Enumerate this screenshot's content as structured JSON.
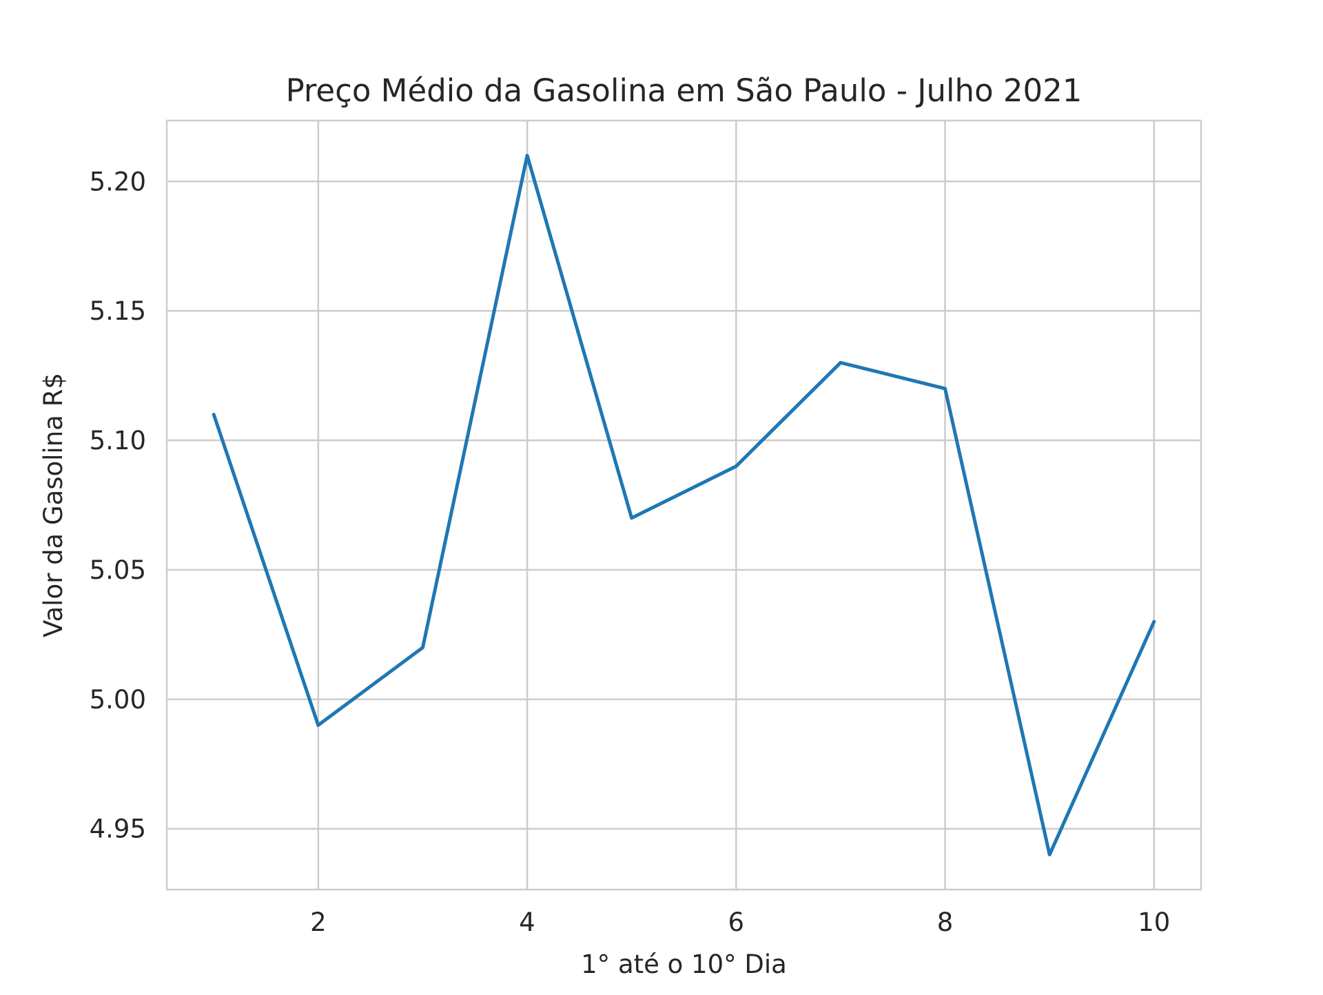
{
  "chart_data": {
    "type": "line",
    "title": "Preço Médio da Gasolina em São Paulo - Julho 2021",
    "xlabel": "1° até o 10° Dia",
    "ylabel": "Valor da Gasolina R$",
    "x": [
      1,
      2,
      3,
      4,
      5,
      6,
      7,
      8,
      9,
      10
    ],
    "series": [
      {
        "values": [
          5.11,
          4.99,
          5.02,
          5.21,
          5.07,
          5.09,
          5.13,
          5.12,
          4.94,
          5.03
        ],
        "color": "#1f77b4"
      }
    ],
    "xlim": [
      0.55,
      10.45
    ],
    "ylim": [
      4.9265,
      5.2235
    ],
    "x_ticks": [
      2,
      4,
      6,
      8,
      10
    ],
    "x_tick_labels": [
      "2",
      "4",
      "6",
      "8",
      "10"
    ],
    "y_ticks": [
      4.95,
      5.0,
      5.05,
      5.1,
      5.15,
      5.2
    ],
    "y_tick_labels": [
      "4.95",
      "5.00",
      "5.05",
      "5.10",
      "5.15",
      "5.20"
    ],
    "grid": true,
    "legend": "none"
  }
}
